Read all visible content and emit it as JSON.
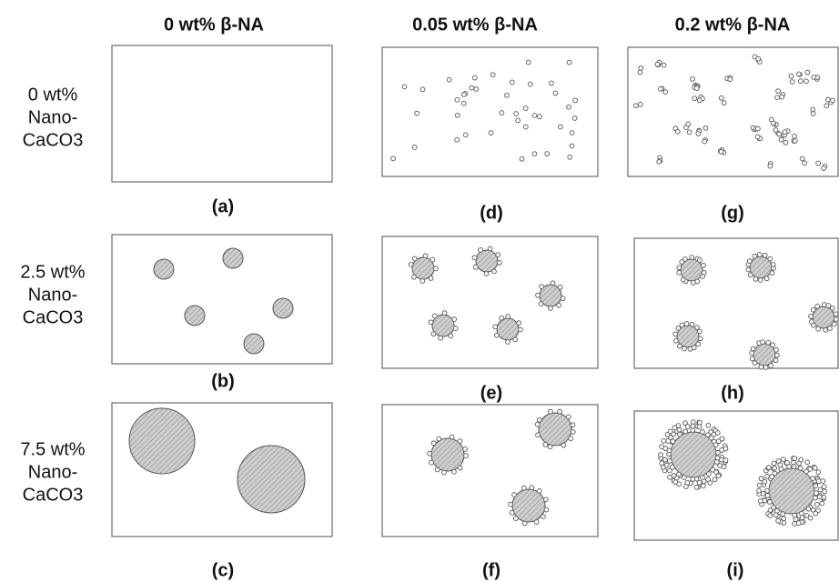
{
  "columns": [
    "0 wt% β-NA",
    "0.05 wt% β-NA",
    "0.2 wt% β-NA"
  ],
  "rows": [
    [
      "0 wt%",
      "Nano-",
      "CaCO3"
    ],
    [
      "2.5 wt%",
      "Nano-",
      "CaCO3"
    ],
    [
      "7.5 wt%",
      "Nano-",
      "CaCO3"
    ]
  ],
  "panels": [
    "(a)",
    "(b)",
    "(c)",
    "(d)",
    "(e)",
    "(f)",
    "(g)",
    "(h)",
    "(i)"
  ]
}
